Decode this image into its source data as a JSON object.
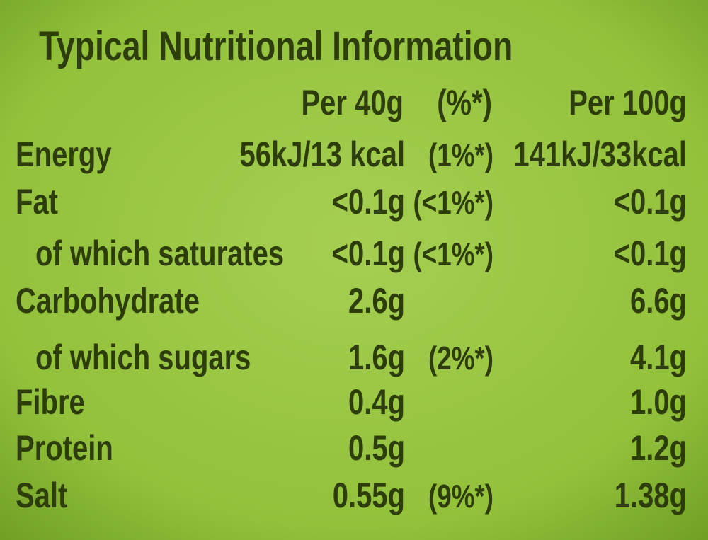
{
  "title": "Typical Nutritional Information",
  "header": {
    "per40": "Per 40g",
    "pct": "(%*)",
    "per100": "Per 100g"
  },
  "rows": [
    {
      "label": "Energy",
      "per40": "56kJ/13 kcal",
      "pct": "(1%*)",
      "per100": "141kJ/33kcal"
    },
    {
      "label": "Fat",
      "per40": "<0.1g",
      "pct": "(<1%*)",
      "per100": "<0.1g"
    },
    {
      "label": "of which saturates",
      "sub": true,
      "per40": "<0.1g",
      "pct": "(<1%*)",
      "per100": "<0.1g"
    },
    {
      "label": "Carbohydrate",
      "per40": "2.6g",
      "per100": "6.6g"
    },
    {
      "label": "of which sugars",
      "sub": true,
      "per40": "1.6g",
      "pct": "(2%*)",
      "per100": "4.1g"
    },
    {
      "label": "Fibre",
      "per40": "0.4g",
      "per100": "1.0g"
    },
    {
      "label": "Protein",
      "per40": "0.5g",
      "per100": "1.2g"
    },
    {
      "label": "Salt",
      "per40": "0.55g",
      "pct": "(9%*)",
      "per100": "1.38g"
    }
  ]
}
